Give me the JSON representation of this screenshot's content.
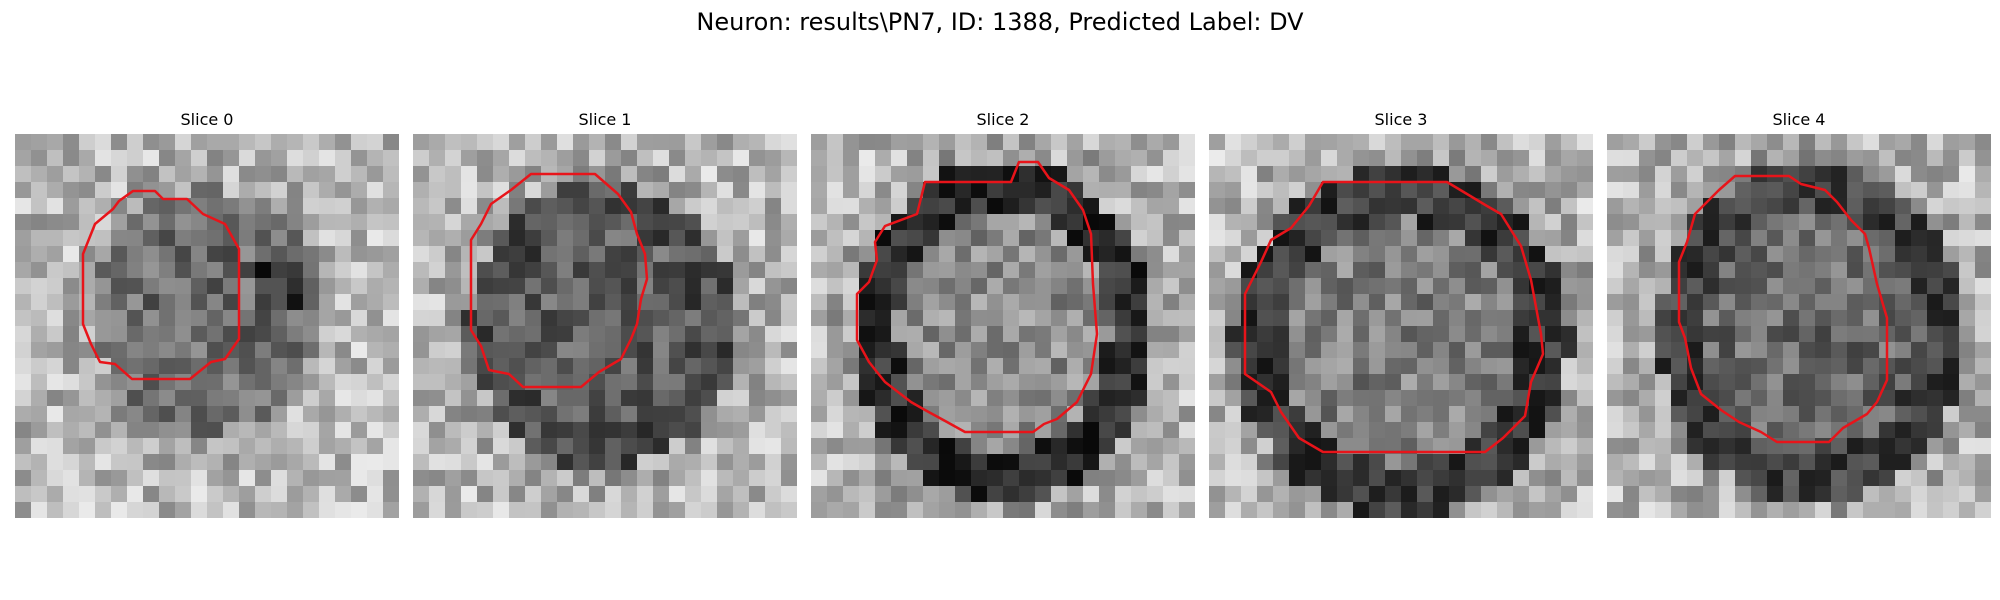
{
  "figure": {
    "title": "Neuron: results\\PN7, ID: 1388, Predicted Label: DV"
  },
  "colors": {
    "contour": "#e8141a",
    "background": "#ffffff"
  },
  "panels": [
    {
      "title": "Slice 0"
    },
    {
      "title": "Slice 1"
    },
    {
      "title": "Slice 2"
    },
    {
      "title": "Slice 3"
    },
    {
      "title": "Slice 4"
    }
  ]
}
